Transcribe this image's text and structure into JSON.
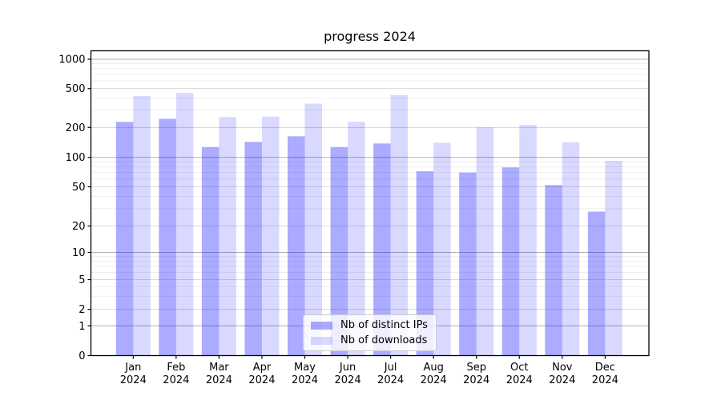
{
  "chart_data": {
    "type": "bar",
    "title": "progress 2024",
    "categories": [
      "Jan",
      "Feb",
      "Mar",
      "Apr",
      "May",
      "Jun",
      "Jul",
      "Aug",
      "Sep",
      "Oct",
      "Nov",
      "Dec"
    ],
    "year_label": "2024",
    "series": [
      {
        "name": "Nb of distinct IPs",
        "color": "#0000ff",
        "opacity": 0.33,
        "values": [
          228,
          245,
          127,
          143,
          163,
          127,
          138,
          72,
          70,
          79,
          52,
          28
        ]
      },
      {
        "name": "Nb of downloads",
        "color": "#0000ff",
        "opacity": 0.15,
        "values": [
          420,
          450,
          255,
          258,
          350,
          228,
          430,
          140,
          200,
          212,
          142,
          92
        ]
      }
    ],
    "yscale": "symlog",
    "yticks": [
      0,
      1,
      2,
      5,
      10,
      20,
      50,
      100,
      200,
      500,
      1000
    ],
    "ylim": [
      0,
      1200
    ],
    "grid": true,
    "legend_position": "lower center"
  }
}
